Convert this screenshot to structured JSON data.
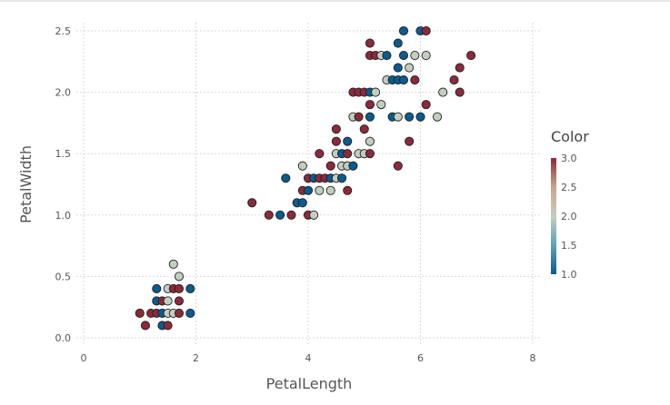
{
  "chart_data": {
    "type": "scatter",
    "xlabel": "PetalLength",
    "ylabel": "PetalWidth",
    "xlim": [
      0,
      8
    ],
    "ylim": [
      0,
      2.5
    ],
    "x_ticks": [
      "0",
      "2",
      "4",
      "6",
      "8"
    ],
    "y_ticks": [
      "0.0",
      "0.5",
      "1.0",
      "1.5",
      "2.0",
      "2.5"
    ],
    "grid": true,
    "color_scale": {
      "title": "Color",
      "min": 1.0,
      "max": 3.0,
      "ticks": [
        "1.0",
        "1.5",
        "2.0",
        "2.5",
        "3.0"
      ],
      "colors": [
        "#0a5c8f",
        "#5fa2b5",
        "#c2cfc0",
        "#c9a48e",
        "#8b2a3b"
      ]
    },
    "points": [
      {
        "x": 1.0,
        "y": 0.2,
        "c": 3
      },
      {
        "x": 1.1,
        "y": 0.1,
        "c": 3
      },
      {
        "x": 1.2,
        "y": 0.2,
        "c": 3
      },
      {
        "x": 1.3,
        "y": 0.2,
        "c": 3
      },
      {
        "x": 1.3,
        "y": 0.3,
        "c": 1
      },
      {
        "x": 1.3,
        "y": 0.4,
        "c": 1
      },
      {
        "x": 1.4,
        "y": 0.2,
        "c": 1
      },
      {
        "x": 1.4,
        "y": 0.3,
        "c": 3
      },
      {
        "x": 1.4,
        "y": 0.1,
        "c": 1
      },
      {
        "x": 1.5,
        "y": 0.2,
        "c": 2
      },
      {
        "x": 1.5,
        "y": 0.4,
        "c": 2
      },
      {
        "x": 1.5,
        "y": 0.1,
        "c": 3
      },
      {
        "x": 1.5,
        "y": 0.3,
        "c": 2
      },
      {
        "x": 1.6,
        "y": 0.2,
        "c": 2
      },
      {
        "x": 1.6,
        "y": 0.4,
        "c": 3
      },
      {
        "x": 1.6,
        "y": 0.6,
        "c": 2
      },
      {
        "x": 1.7,
        "y": 0.5,
        "c": 2
      },
      {
        "x": 1.7,
        "y": 0.3,
        "c": 3
      },
      {
        "x": 1.7,
        "y": 0.4,
        "c": 3
      },
      {
        "x": 1.7,
        "y": 0.2,
        "c": 3
      },
      {
        "x": 1.9,
        "y": 0.2,
        "c": 1
      },
      {
        "x": 1.9,
        "y": 0.4,
        "c": 1
      },
      {
        "x": 3.0,
        "y": 1.1,
        "c": 3
      },
      {
        "x": 3.3,
        "y": 1.0,
        "c": 3
      },
      {
        "x": 3.5,
        "y": 1.0,
        "c": 1
      },
      {
        "x": 3.6,
        "y": 1.3,
        "c": 1
      },
      {
        "x": 3.7,
        "y": 1.0,
        "c": 3
      },
      {
        "x": 3.8,
        "y": 1.1,
        "c": 1
      },
      {
        "x": 3.9,
        "y": 1.1,
        "c": 1
      },
      {
        "x": 3.9,
        "y": 1.2,
        "c": 3
      },
      {
        "x": 3.9,
        "y": 1.4,
        "c": 2
      },
      {
        "x": 4.0,
        "y": 1.0,
        "c": 3
      },
      {
        "x": 4.0,
        "y": 1.2,
        "c": 1
      },
      {
        "x": 4.0,
        "y": 1.3,
        "c": 3
      },
      {
        "x": 4.1,
        "y": 1.0,
        "c": 2
      },
      {
        "x": 4.1,
        "y": 1.3,
        "c": 1
      },
      {
        "x": 4.2,
        "y": 1.2,
        "c": 2
      },
      {
        "x": 4.2,
        "y": 1.3,
        "c": 3
      },
      {
        "x": 4.2,
        "y": 1.5,
        "c": 3
      },
      {
        "x": 4.3,
        "y": 1.3,
        "c": 3
      },
      {
        "x": 4.4,
        "y": 1.2,
        "c": 2
      },
      {
        "x": 4.4,
        "y": 1.3,
        "c": 1
      },
      {
        "x": 4.4,
        "y": 1.4,
        "c": 3
      },
      {
        "x": 4.5,
        "y": 1.3,
        "c": 2
      },
      {
        "x": 4.5,
        "y": 1.5,
        "c": 2
      },
      {
        "x": 4.5,
        "y": 1.6,
        "c": 3
      },
      {
        "x": 4.5,
        "y": 1.7,
        "c": 3
      },
      {
        "x": 4.6,
        "y": 1.3,
        "c": 1
      },
      {
        "x": 4.6,
        "y": 1.4,
        "c": 2
      },
      {
        "x": 4.6,
        "y": 1.5,
        "c": 1
      },
      {
        "x": 4.7,
        "y": 1.2,
        "c": 3
      },
      {
        "x": 4.7,
        "y": 1.4,
        "c": 2
      },
      {
        "x": 4.7,
        "y": 1.5,
        "c": 3
      },
      {
        "x": 4.7,
        "y": 1.6,
        "c": 1
      },
      {
        "x": 4.8,
        "y": 1.4,
        "c": 1
      },
      {
        "x": 4.8,
        "y": 1.8,
        "c": 2
      },
      {
        "x": 4.8,
        "y": 2.0,
        "c": 3
      },
      {
        "x": 4.9,
        "y": 1.5,
        "c": 2
      },
      {
        "x": 4.9,
        "y": 1.8,
        "c": 3
      },
      {
        "x": 4.9,
        "y": 2.0,
        "c": 3
      },
      {
        "x": 5.0,
        "y": 1.5,
        "c": 2
      },
      {
        "x": 5.0,
        "y": 1.7,
        "c": 3
      },
      {
        "x": 5.0,
        "y": 2.0,
        "c": 3
      },
      {
        "x": 5.1,
        "y": 1.5,
        "c": 3
      },
      {
        "x": 5.1,
        "y": 1.6,
        "c": 2
      },
      {
        "x": 5.1,
        "y": 1.8,
        "c": 1
      },
      {
        "x": 5.1,
        "y": 1.9,
        "c": 3
      },
      {
        "x": 5.1,
        "y": 2.0,
        "c": 1
      },
      {
        "x": 5.1,
        "y": 2.3,
        "c": 3
      },
      {
        "x": 5.1,
        "y": 2.4,
        "c": 3
      },
      {
        "x": 5.2,
        "y": 2.0,
        "c": 2
      },
      {
        "x": 5.2,
        "y": 2.3,
        "c": 3
      },
      {
        "x": 5.3,
        "y": 1.9,
        "c": 2
      },
      {
        "x": 5.3,
        "y": 2.3,
        "c": 2
      },
      {
        "x": 5.4,
        "y": 2.1,
        "c": 2
      },
      {
        "x": 5.4,
        "y": 2.3,
        "c": 1
      },
      {
        "x": 5.5,
        "y": 1.8,
        "c": 1
      },
      {
        "x": 5.5,
        "y": 2.1,
        "c": 1
      },
      {
        "x": 5.6,
        "y": 1.4,
        "c": 3
      },
      {
        "x": 5.6,
        "y": 1.8,
        "c": 2
      },
      {
        "x": 5.6,
        "y": 2.1,
        "c": 1
      },
      {
        "x": 5.6,
        "y": 2.2,
        "c": 1
      },
      {
        "x": 5.6,
        "y": 2.4,
        "c": 1
      },
      {
        "x": 5.7,
        "y": 2.1,
        "c": 1
      },
      {
        "x": 5.7,
        "y": 2.3,
        "c": 1
      },
      {
        "x": 5.7,
        "y": 2.5,
        "c": 1
      },
      {
        "x": 5.8,
        "y": 1.6,
        "c": 3
      },
      {
        "x": 5.8,
        "y": 1.8,
        "c": 1
      },
      {
        "x": 5.8,
        "y": 2.2,
        "c": 2
      },
      {
        "x": 5.9,
        "y": 2.1,
        "c": 3
      },
      {
        "x": 5.9,
        "y": 2.3,
        "c": 2
      },
      {
        "x": 6.0,
        "y": 1.8,
        "c": 1
      },
      {
        "x": 6.0,
        "y": 2.5,
        "c": 1
      },
      {
        "x": 6.1,
        "y": 1.9,
        "c": 3
      },
      {
        "x": 6.1,
        "y": 2.3,
        "c": 2
      },
      {
        "x": 6.1,
        "y": 2.5,
        "c": 3
      },
      {
        "x": 6.3,
        "y": 1.8,
        "c": 2
      },
      {
        "x": 6.4,
        "y": 2.0,
        "c": 2
      },
      {
        "x": 6.6,
        "y": 2.1,
        "c": 3
      },
      {
        "x": 6.7,
        "y": 2.0,
        "c": 3
      },
      {
        "x": 6.7,
        "y": 2.2,
        "c": 3
      },
      {
        "x": 6.9,
        "y": 2.3,
        "c": 3
      }
    ]
  }
}
